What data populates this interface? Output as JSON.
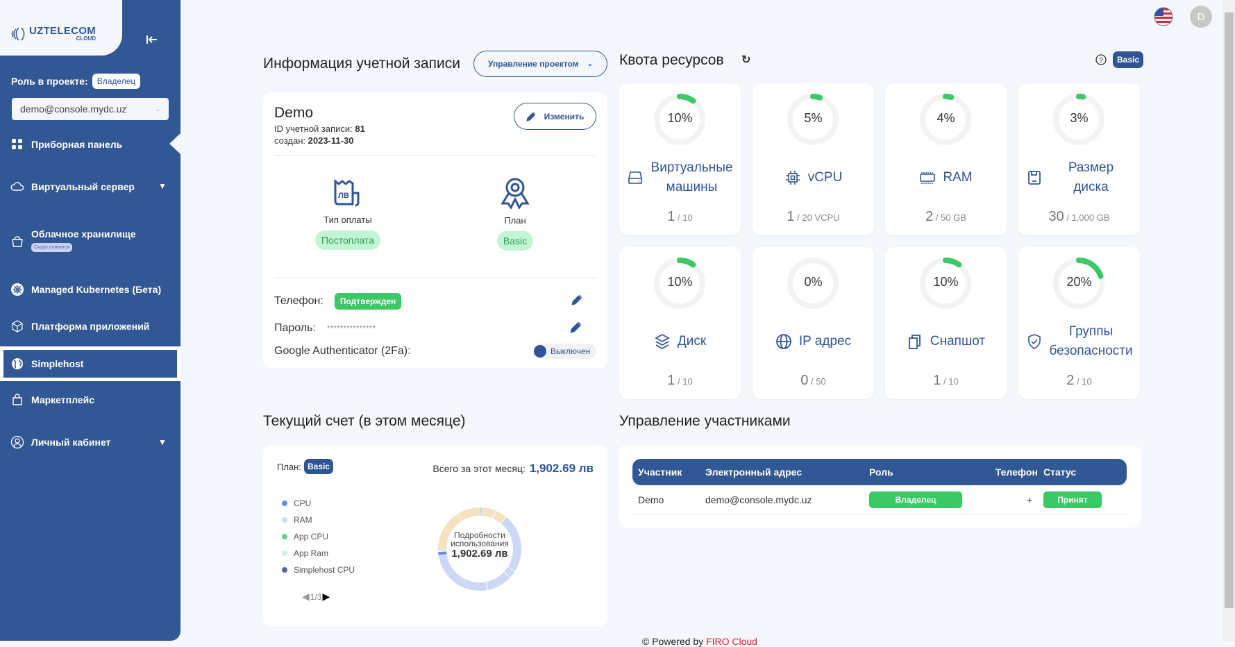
{
  "brand": {
    "name": "UZTELECOM",
    "sub": "CLOUD"
  },
  "sidebar": {
    "role_label": "Роль в проекте:",
    "role_value": "Владелец",
    "project_select": "demo@console.mydc.uz",
    "items": [
      {
        "label": "Приборная панель",
        "icon": "dashboard-icon"
      },
      {
        "label": "Виртуальный сервер",
        "icon": "cloud-icon"
      },
      {
        "label": "Облачное хранилище",
        "icon": "bucket-icon",
        "badge": "Скоро появится"
      },
      {
        "label": "Managed Kubernetes (Бета)",
        "icon": "kubernetes-icon"
      },
      {
        "label": "Платформа приложений",
        "icon": "cube-icon"
      },
      {
        "label": "Simplehost",
        "icon": "globe-icon"
      },
      {
        "label": "Маркетплейс",
        "icon": "shopping-bag-icon"
      },
      {
        "label": "Личный кабинет",
        "icon": "user-icon"
      }
    ]
  },
  "header": {
    "avatar": "D",
    "language": "en-US flag"
  },
  "account": {
    "title": "Информация учетной записи",
    "manage_button": "Управление проектом",
    "name": "Demo",
    "id_label": "ID учетной записи:",
    "id": "81",
    "created_label": "создан:",
    "created": "2023-11-30",
    "edit_button": "Изменить",
    "payment_label": "Тип оплаты",
    "payment_value": "Постоплата",
    "payment_icon_text": "ЛВ",
    "plan_label": "План",
    "plan_value": "Basic",
    "phone_label": "Телефон:",
    "phone_status": "Подтвержден",
    "password_label": "Пароль:",
    "password_value": "***************",
    "twofa_label": "Google Authenticator (2Fa):",
    "twofa_status": "Выключен"
  },
  "quota": {
    "title": "Квота ресурсов",
    "plan": "Basic",
    "items": [
      {
        "pct": 10,
        "pct_label": "10%",
        "label": "Виртуальные машины",
        "used": "1",
        "limit": "/ 10",
        "icon": "hard-drive-icon"
      },
      {
        "pct": 5,
        "pct_label": "5%",
        "label": "vCPU",
        "used": "1",
        "limit": "/ 20 VCPU",
        "icon": "cpu-icon"
      },
      {
        "pct": 4,
        "pct_label": "4%",
        "label": "RAM",
        "used": "2",
        "limit": "/ 50 GB",
        "icon": "memory-icon"
      },
      {
        "pct": 3,
        "pct_label": "3%",
        "label": "Размер диска",
        "used": "30",
        "limit": "/ 1,000 GB",
        "icon": "floppy-disk-icon"
      },
      {
        "pct": 10,
        "pct_label": "10%",
        "label": "Диск",
        "used": "1",
        "limit": "/ 10",
        "icon": "layers-icon"
      },
      {
        "pct": 0,
        "pct_label": "0%",
        "label": "IP адрес",
        "used": "0",
        "limit": "/ 50",
        "icon": "globe-icon"
      },
      {
        "pct": 10,
        "pct_label": "10%",
        "label": "Снапшот",
        "used": "1",
        "limit": "/ 10",
        "icon": "copy-icon"
      },
      {
        "pct": 20,
        "pct_label": "20%",
        "label": "Группы безопасности",
        "used": "2",
        "limit": "/ 10",
        "icon": "shield-check-icon"
      }
    ]
  },
  "bill": {
    "title": "Текущий счет (в этом месяце)",
    "plan_label": "План:",
    "plan": "Basic",
    "total_label": "Всего за этот месяц:",
    "total": "1,902.69 лв",
    "legend_page": "1/3",
    "center_label": "Подробности использования",
    "center_value": "1,902.69 лв"
  },
  "chart_data": {
    "type": "pie",
    "variant": "donut",
    "legend": [
      {
        "name": "CPU",
        "color": "#5b8ff0"
      },
      {
        "name": "RAM",
        "color": "#cbd9f7"
      },
      {
        "name": "App CPU",
        "color": "#5ccf95"
      },
      {
        "name": "App Ram",
        "color": "#cdf2e0"
      },
      {
        "name": "Simplehost CPU",
        "color": "#56698f"
      }
    ],
    "slices": [
      {
        "series": "CPU",
        "value": 0.6,
        "color": "#5b8ff0"
      },
      {
        "value": 6,
        "color": "#f5e3bf"
      },
      {
        "value": 4.5,
        "color": "#f5e3bf"
      },
      {
        "series": "RAM",
        "value": 23,
        "color": "#cbd9f7"
      },
      {
        "series": "RAM",
        "value": 3,
        "color": "#cbd9f7"
      },
      {
        "series": "RAM",
        "value": 10,
        "color": "#cbd9f7"
      },
      {
        "series": "RAM",
        "value": 25.5,
        "color": "#cbd9f7"
      },
      {
        "series": "CPU",
        "value": 1.6,
        "color": "#5b8ff0"
      },
      {
        "value": 17,
        "color": "#f5e3bf"
      },
      {
        "value": 8.8,
        "color": "#f5e3bf"
      }
    ],
    "legend_placement": "left"
  },
  "members": {
    "title": "Управление участниками",
    "columns": [
      "Участник",
      "Электронный адрес",
      "Роль",
      "Телефон",
      "Статус"
    ],
    "rows": [
      {
        "name": "Demo",
        "email": "demo@console.mydc.uz",
        "role": "Владелец",
        "phone": "+",
        "status": "Принят"
      }
    ]
  },
  "footer": {
    "prefix": "© Powered by",
    "brand": "FIRO Cloud"
  }
}
